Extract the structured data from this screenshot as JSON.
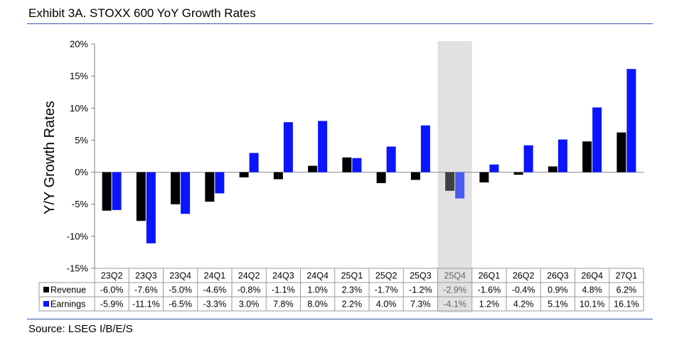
{
  "title": "Exhibit 3A.  STOXX 600 YoY Growth Rates",
  "source": "Source: LSEG I/B/E/S",
  "chart_data": {
    "type": "bar",
    "title": "Exhibit 3A.  STOXX 600 YoY Growth Rates",
    "xlabel": "",
    "ylabel": "Y/Y Growth Rates",
    "ylim": [
      -15,
      20
    ],
    "yticks": [
      20,
      15,
      10,
      5,
      0,
      -5,
      -10,
      -15
    ],
    "ytick_labels": [
      "20%",
      "15%",
      "10%",
      "5%",
      "0%",
      "-5%",
      "-10%",
      "-15%"
    ],
    "categories": [
      "23Q2",
      "23Q3",
      "23Q4",
      "24Q1",
      "24Q2",
      "24Q3",
      "24Q4",
      "25Q1",
      "25Q2",
      "25Q3",
      "25Q4",
      "26Q1",
      "26Q2",
      "26Q3",
      "26Q4",
      "27Q1"
    ],
    "highlight_category": "25Q4",
    "grid": false,
    "legend": "data-table",
    "series": [
      {
        "name": "Revenue",
        "color": "#000000",
        "highlight_color": "#404040",
        "values": [
          -6.0,
          -7.6,
          -5.0,
          -4.6,
          -0.8,
          -1.1,
          1.0,
          2.3,
          -1.7,
          -1.2,
          -2.9,
          -1.6,
          -0.4,
          0.9,
          4.8,
          6.2
        ],
        "labels": [
          "-6.0%",
          "-7.6%",
          "-5.0%",
          "-4.6%",
          "-0.8%",
          "-1.1%",
          "1.0%",
          "2.3%",
          "-1.7%",
          "-1.2%",
          "-2.9%",
          "-1.6%",
          "-0.4%",
          "0.9%",
          "4.8%",
          "6.2%"
        ]
      },
      {
        "name": "Earnings",
        "color": "#0a14ff",
        "highlight_color": "#4a5cf0",
        "values": [
          -5.9,
          -11.1,
          -6.5,
          -3.3,
          3.0,
          7.8,
          8.0,
          2.2,
          4.0,
          7.3,
          -4.1,
          1.2,
          4.2,
          5.1,
          10.1,
          16.1
        ],
        "labels": [
          "-5.9%",
          "-11.1%",
          "-6.5%",
          "-3.3%",
          "3.0%",
          "7.8%",
          "8.0%",
          "2.2%",
          "4.0%",
          "7.3%",
          "-4.1%",
          "1.2%",
          "4.2%",
          "5.1%",
          "10.1%",
          "16.1%"
        ]
      }
    ]
  }
}
